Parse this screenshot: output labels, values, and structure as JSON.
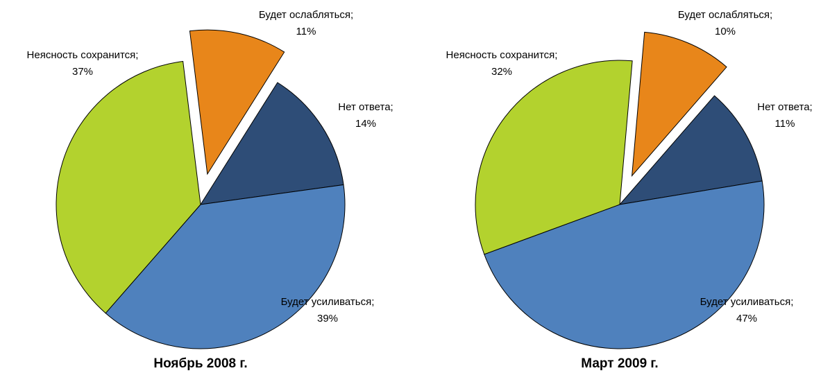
{
  "chart_data": [
    {
      "type": "pie",
      "title": "Ноябрь 2008 г.",
      "categories": [
        "Будет ослабляться;",
        "Нет ответа;",
        "Будет усиливаться;",
        "Неясность сохранится;"
      ],
      "values": [
        11,
        14,
        39,
        37
      ],
      "value_labels": [
        "11%",
        "14%",
        "39%",
        "37%"
      ],
      "colors": [
        "#e8861a",
        "#2e4d77",
        "#4f81bd",
        "#b3d22e"
      ],
      "startangle": -7
    },
    {
      "type": "pie",
      "title": "Март 2009 г.",
      "categories": [
        "Будет ослабляться;",
        "Нет ответа;",
        "Будет усиливаться;",
        "Неясность сохранится;"
      ],
      "values": [
        10,
        11,
        47,
        32
      ],
      "value_labels": [
        "10%",
        "11%",
        "47%",
        "32%"
      ],
      "colors": [
        "#e8861a",
        "#2e4d77",
        "#4f81bd",
        "#b3d22e"
      ],
      "startangle": 5
    }
  ]
}
